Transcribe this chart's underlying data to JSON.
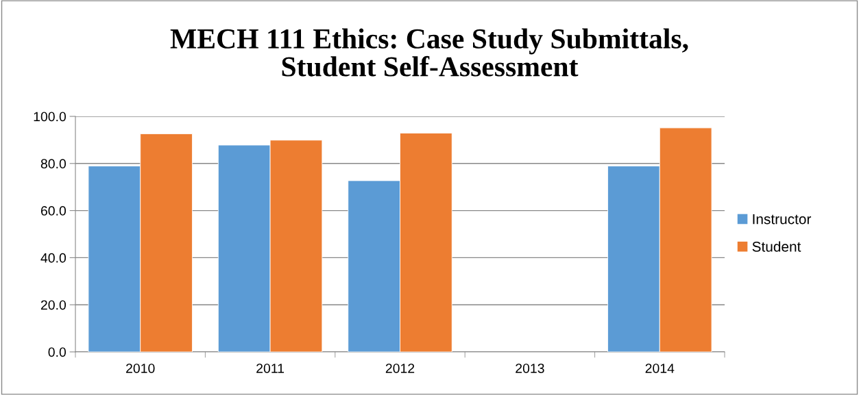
{
  "chart_data": {
    "type": "bar",
    "title": "MECH 111 Ethics: Case Study Submittals,\nStudent Self-Assessment",
    "categories": [
      "2010",
      "2011",
      "2012",
      "2013",
      "2014"
    ],
    "series": [
      {
        "name": "Instructor",
        "color": "#5b9bd5",
        "values": [
          78.9,
          87.8,
          72.7,
          null,
          78.9
        ]
      },
      {
        "name": "Student",
        "color": "#ed7d31",
        "values": [
          92.6,
          89.9,
          92.9,
          null,
          95.1
        ]
      }
    ],
    "ylim": [
      0,
      100
    ],
    "yticks": [
      {
        "value": 0,
        "label": "0.0"
      },
      {
        "value": 20,
        "label": "20.0"
      },
      {
        "value": 40,
        "label": "40.0"
      },
      {
        "value": 60,
        "label": "60.0"
      },
      {
        "value": 80,
        "label": "80.0"
      },
      {
        "value": 100,
        "label": "100.0"
      }
    ],
    "grid": "y",
    "legend": "right"
  }
}
